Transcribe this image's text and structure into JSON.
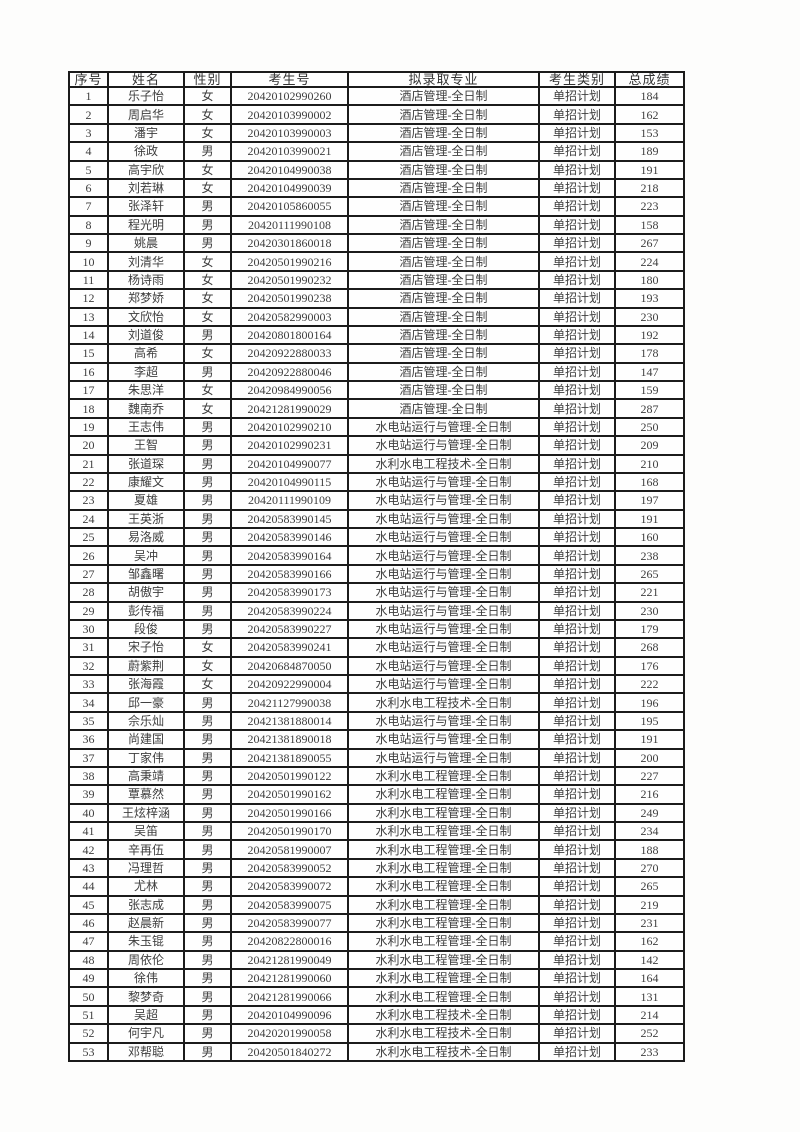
{
  "table": {
    "headers": [
      "序号",
      "姓名",
      "性别",
      "考生号",
      "拟录取专业",
      "考生类别",
      "总成绩"
    ],
    "cell_names": [
      "cell-index",
      "cell-name",
      "cell-gender",
      "cell-candidate-no",
      "cell-major",
      "cell-category",
      "cell-score"
    ],
    "cell_classes": [
      "c-index",
      "c-name",
      "c-gender",
      "c-candidate-no",
      "c-major",
      "c-category",
      "c-score"
    ],
    "colors": {
      "border": "#1b1b1b",
      "text": "#3e3e3e",
      "background": "#fdfdfc"
    },
    "rows": [
      [
        "1",
        "乐子怡",
        "女",
        "20420102990260",
        "酒店管理-全日制",
        "单招计划",
        "184"
      ],
      [
        "2",
        "周启华",
        "女",
        "20420103990002",
        "酒店管理-全日制",
        "单招计划",
        "162"
      ],
      [
        "3",
        "潘宇",
        "女",
        "20420103990003",
        "酒店管理-全日制",
        "单招计划",
        "153"
      ],
      [
        "4",
        "徐政",
        "男",
        "20420103990021",
        "酒店管理-全日制",
        "单招计划",
        "189"
      ],
      [
        "5",
        "高宇欣",
        "女",
        "20420104990038",
        "酒店管理-全日制",
        "单招计划",
        "191"
      ],
      [
        "6",
        "刘若琳",
        "女",
        "20420104990039",
        "酒店管理-全日制",
        "单招计划",
        "218"
      ],
      [
        "7",
        "张泽轩",
        "男",
        "20420105860055",
        "酒店管理-全日制",
        "单招计划",
        "223"
      ],
      [
        "8",
        "程光明",
        "男",
        "20420111990108",
        "酒店管理-全日制",
        "单招计划",
        "158"
      ],
      [
        "9",
        "姚晨",
        "男",
        "20420301860018",
        "酒店管理-全日制",
        "单招计划",
        "267"
      ],
      [
        "10",
        "刘清华",
        "女",
        "20420501990216",
        "酒店管理-全日制",
        "单招计划",
        "224"
      ],
      [
        "11",
        "杨诗雨",
        "女",
        "20420501990232",
        "酒店管理-全日制",
        "单招计划",
        "180"
      ],
      [
        "12",
        "郑梦娇",
        "女",
        "20420501990238",
        "酒店管理-全日制",
        "单招计划",
        "193"
      ],
      [
        "13",
        "文欣怡",
        "女",
        "20420582990003",
        "酒店管理-全日制",
        "单招计划",
        "230"
      ],
      [
        "14",
        "刘道俊",
        "男",
        "20420801800164",
        "酒店管理-全日制",
        "单招计划",
        "192"
      ],
      [
        "15",
        "高希",
        "女",
        "20420922880033",
        "酒店管理-全日制",
        "单招计划",
        "178"
      ],
      [
        "16",
        "李超",
        "男",
        "20420922880046",
        "酒店管理-全日制",
        "单招计划",
        "147"
      ],
      [
        "17",
        "朱思洋",
        "女",
        "20420984990056",
        "酒店管理-全日制",
        "单招计划",
        "159"
      ],
      [
        "18",
        "魏南乔",
        "女",
        "20421281990029",
        "酒店管理-全日制",
        "单招计划",
        "287"
      ],
      [
        "19",
        "王志伟",
        "男",
        "20420102990210",
        "水电站运行与管理-全日制",
        "单招计划",
        "250"
      ],
      [
        "20",
        "王智",
        "男",
        "20420102990231",
        "水电站运行与管理-全日制",
        "单招计划",
        "209"
      ],
      [
        "21",
        "张道琛",
        "男",
        "20420104990077",
        "水利水电工程技术-全日制",
        "单招计划",
        "210"
      ],
      [
        "22",
        "康耀文",
        "男",
        "20420104990115",
        "水电站运行与管理-全日制",
        "单招计划",
        "168"
      ],
      [
        "23",
        "夏雄",
        "男",
        "20420111990109",
        "水电站运行与管理-全日制",
        "单招计划",
        "197"
      ],
      [
        "24",
        "王英浙",
        "男",
        "20420583990145",
        "水电站运行与管理-全日制",
        "单招计划",
        "191"
      ],
      [
        "25",
        "易洛威",
        "男",
        "20420583990146",
        "水电站运行与管理-全日制",
        "单招计划",
        "160"
      ],
      [
        "26",
        "吴冲",
        "男",
        "20420583990164",
        "水电站运行与管理-全日制",
        "单招计划",
        "238"
      ],
      [
        "27",
        "邹鑫曙",
        "男",
        "20420583990166",
        "水电站运行与管理-全日制",
        "单招计划",
        "265"
      ],
      [
        "28",
        "胡傲宇",
        "男",
        "20420583990173",
        "水电站运行与管理-全日制",
        "单招计划",
        "221"
      ],
      [
        "29",
        "彭传福",
        "男",
        "20420583990224",
        "水电站运行与管理-全日制",
        "单招计划",
        "230"
      ],
      [
        "30",
        "段俊",
        "男",
        "20420583990227",
        "水电站运行与管理-全日制",
        "单招计划",
        "179"
      ],
      [
        "31",
        "宋子怡",
        "女",
        "20420583990241",
        "水电站运行与管理-全日制",
        "单招计划",
        "268"
      ],
      [
        "32",
        "蔚紫荆",
        "女",
        "20420684870050",
        "水电站运行与管理-全日制",
        "单招计划",
        "176"
      ],
      [
        "33",
        "张海霞",
        "女",
        "20420922990004",
        "水电站运行与管理-全日制",
        "单招计划",
        "222"
      ],
      [
        "34",
        "邱一豪",
        "男",
        "20421127990038",
        "水利水电工程技术-全日制",
        "单招计划",
        "196"
      ],
      [
        "35",
        "佘乐灿",
        "男",
        "20421381880014",
        "水电站运行与管理-全日制",
        "单招计划",
        "195"
      ],
      [
        "36",
        "尚建国",
        "男",
        "20421381890018",
        "水电站运行与管理-全日制",
        "单招计划",
        "191"
      ],
      [
        "37",
        "丁家伟",
        "男",
        "20421381890055",
        "水电站运行与管理-全日制",
        "单招计划",
        "200"
      ],
      [
        "38",
        "高秉靖",
        "男",
        "20420501990122",
        "水利水电工程管理-全日制",
        "单招计划",
        "227"
      ],
      [
        "39",
        "覃慕然",
        "男",
        "20420501990162",
        "水利水电工程管理-全日制",
        "单招计划",
        "216"
      ],
      [
        "40",
        "王炫梓涵",
        "男",
        "20420501990166",
        "水利水电工程管理-全日制",
        "单招计划",
        "249"
      ],
      [
        "41",
        "吴笛",
        "男",
        "20420501990170",
        "水利水电工程管理-全日制",
        "单招计划",
        "234"
      ],
      [
        "42",
        "辛再伍",
        "男",
        "20420581990007",
        "水利水电工程管理-全日制",
        "单招计划",
        "188"
      ],
      [
        "43",
        "冯理哲",
        "男",
        "20420583990052",
        "水利水电工程管理-全日制",
        "单招计划",
        "270"
      ],
      [
        "44",
        "尤林",
        "男",
        "20420583990072",
        "水利水电工程管理-全日制",
        "单招计划",
        "265"
      ],
      [
        "45",
        "张志成",
        "男",
        "20420583990075",
        "水利水电工程管理-全日制",
        "单招计划",
        "219"
      ],
      [
        "46",
        "赵晨新",
        "男",
        "20420583990077",
        "水利水电工程管理-全日制",
        "单招计划",
        "231"
      ],
      [
        "47",
        "朱玉锟",
        "男",
        "20420822800016",
        "水利水电工程管理-全日制",
        "单招计划",
        "162"
      ],
      [
        "48",
        "周依伦",
        "男",
        "20421281990049",
        "水利水电工程管理-全日制",
        "单招计划",
        "142"
      ],
      [
        "49",
        "徐伟",
        "男",
        "20421281990060",
        "水利水电工程管理-全日制",
        "单招计划",
        "164"
      ],
      [
        "50",
        "黎梦奇",
        "男",
        "20421281990066",
        "水利水电工程管理-全日制",
        "单招计划",
        "131"
      ],
      [
        "51",
        "吴超",
        "男",
        "20420104990096",
        "水利水电工程技术-全日制",
        "单招计划",
        "214"
      ],
      [
        "52",
        "何宇凡",
        "男",
        "20420201990058",
        "水利水电工程技术-全日制",
        "单招计划",
        "252"
      ],
      [
        "53",
        "邓帮聪",
        "男",
        "20420501840272",
        "水利水电工程技术-全日制",
        "单招计划",
        "233"
      ]
    ]
  }
}
